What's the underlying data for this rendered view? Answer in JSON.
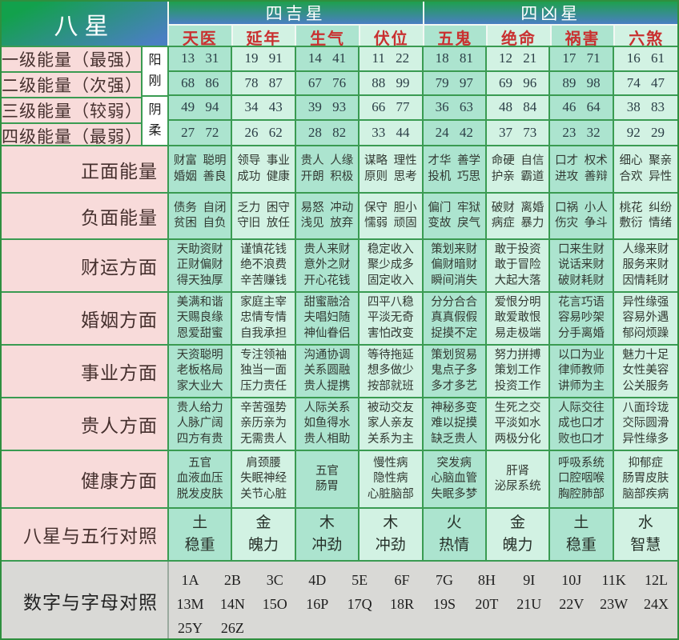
{
  "title": "八星",
  "groups": [
    {
      "label": "四吉星"
    },
    {
      "label": "四凶星"
    }
  ],
  "stars": [
    "天医",
    "延年",
    "生气",
    "伏位",
    "五鬼",
    "绝命",
    "祸害",
    "六煞"
  ],
  "yin_yang": [
    "阳刚",
    "阴柔"
  ],
  "energy_rows": [
    {
      "label": "一级能量（最强）",
      "values": [
        "13 31",
        "19 91",
        "14 41",
        "11 22",
        "18 81",
        "12 21",
        "17 71",
        "16 61"
      ]
    },
    {
      "label": "二级能量（次强）",
      "values": [
        "68 86",
        "78 87",
        "67 76",
        "88 99",
        "79 97",
        "69 96",
        "89 98",
        "74 47"
      ]
    },
    {
      "label": "三级能量（较弱）",
      "values": [
        "49 94",
        "34 43",
        "39 93",
        "66 77",
        "36 63",
        "48 84",
        "46 64",
        "38 83"
      ]
    },
    {
      "label": "四级能量（最弱）",
      "values": [
        "27 72",
        "26 62",
        "28 82",
        "33 44",
        "24 42",
        "37 73",
        "23 32",
        "92 29"
      ]
    }
  ],
  "aspect_rows": [
    {
      "label": "正面能量",
      "cells": [
        [
          "财富 聪明",
          "婚姻 善良"
        ],
        [
          "领导 事业",
          "成功 健康"
        ],
        [
          "贵人 人缘",
          "开朗 积极"
        ],
        [
          "谋略 理性",
          "原则 思考"
        ],
        [
          "才华 善学",
          "投机 巧思"
        ],
        [
          "命硬 自信",
          "护亲 霸道"
        ],
        [
          "口才 权术",
          "进攻 善辩"
        ],
        [
          "细心 聚亲",
          "合欢 异性"
        ]
      ]
    },
    {
      "label": "负面能量",
      "cells": [
        [
          "债务 自闭",
          "贫困 自负"
        ],
        [
          "乏力 困守",
          "守旧 放任"
        ],
        [
          "易怒 冲动",
          "浅见 放弃"
        ],
        [
          "保守 胆小",
          "懦弱 顽固"
        ],
        [
          "偏门 牢狱",
          "变故 戾气"
        ],
        [
          "破财 离婚",
          "病症 暴力"
        ],
        [
          "口祸 小人",
          "伤灾 争斗"
        ],
        [
          "桃花 纠纷",
          "敷衍 情绪"
        ]
      ]
    },
    {
      "label": "财运方面",
      "cells": [
        [
          "天助资财",
          "正财偏财",
          "得天独厚"
        ],
        [
          "谨慎花钱",
          "绝不浪费",
          "辛苦赚钱"
        ],
        [
          "贵人来财",
          "意外之财",
          "开心花钱"
        ],
        [
          "稳定收入",
          "聚少成多",
          "固定收入"
        ],
        [
          "策划来财",
          "偏财暗财",
          "瞬间消失"
        ],
        [
          "敢于投资",
          "敢于冒险",
          "大起大落"
        ],
        [
          "口来生财",
          "说话来财",
          "破财耗财"
        ],
        [
          "人缘来财",
          "服务来财",
          "因情耗财"
        ]
      ]
    },
    {
      "label": "婚姻方面",
      "cells": [
        [
          "美满和谐",
          "天赐良缘",
          "恩爱甜蜜"
        ],
        [
          "家庭主宰",
          "忠情专情",
          "自我承担"
        ],
        [
          "甜蜜融洽",
          "夫唱妇随",
          "神仙眷侣"
        ],
        [
          "四平八稳",
          "平淡无奇",
          "害怕改变"
        ],
        [
          "分分合合",
          "真真假假",
          "捉摸不定"
        ],
        [
          "爱恨分明",
          "敢爱敢恨",
          "易走极端"
        ],
        [
          "花言巧语",
          "容易吵架",
          "分手离婚"
        ],
        [
          "异性缘强",
          "容易外遇",
          "郁闷烦躁"
        ]
      ]
    },
    {
      "label": "事业方面",
      "cells": [
        [
          "天资聪明",
          "老板格局",
          "家大业大"
        ],
        [
          "专注领袖",
          "独当一面",
          "压力责任"
        ],
        [
          "沟通协调",
          "关系圆融",
          "贵人提携"
        ],
        [
          "等待拖延",
          "想多做少",
          "按部就班"
        ],
        [
          "策划贸易",
          "鬼点子多",
          "多才多艺"
        ],
        [
          "努力拼搏",
          "策划工作",
          "投资工作"
        ],
        [
          "以口为业",
          "律师教师",
          "讲师为主"
        ],
        [
          "魅力十足",
          "女性美容",
          "公关服务"
        ]
      ]
    },
    {
      "label": "贵人方面",
      "cells": [
        [
          "贵人给力",
          "人脉广阔",
          "四方有贵"
        ],
        [
          "辛苦强势",
          "亲历亲为",
          "无需贵人"
        ],
        [
          "人际关系",
          "如鱼得水",
          "贵人相助"
        ],
        [
          "被动交友",
          "家人亲友",
          "关系为主"
        ],
        [
          "神秘多变",
          "难以捉摸",
          "缺乏贵人"
        ],
        [
          "生死之交",
          "平淡如水",
          "两极分化"
        ],
        [
          "人际交往",
          "成也口才",
          "败也口才"
        ],
        [
          "八面玲珑",
          "交际圆滑",
          "异性缘多"
        ]
      ]
    },
    {
      "label": "健康方面",
      "cells": [
        [
          "五官",
          "血液血压",
          "脱发皮肤"
        ],
        [
          "肩颈腰",
          "失眠神经",
          "关节心脏"
        ],
        [
          "五官",
          "肠胃"
        ],
        [
          "慢性病",
          "隐性病",
          "心脏脑部"
        ],
        [
          "突发病",
          "心脑血管",
          "失眠多梦"
        ],
        [
          "肝肾",
          "泌尿系统"
        ],
        [
          "呼吸系统",
          "口腔咽喉",
          "胸腔肺部"
        ],
        [
          "抑郁症",
          "肠胃皮肤",
          "脑部疾病"
        ]
      ]
    },
    {
      "label": "八星与五行对照",
      "wuxing": true,
      "cells": [
        [
          "土",
          "稳重"
        ],
        [
          "金",
          "魄力"
        ],
        [
          "木",
          "冲劲"
        ],
        [
          "木",
          "冲劲"
        ],
        [
          "火",
          "热情"
        ],
        [
          "金",
          "魄力"
        ],
        [
          "土",
          "稳重"
        ],
        [
          "水",
          "智慧"
        ]
      ]
    }
  ],
  "letters_row": {
    "label": "数字与字母对照",
    "rows": [
      [
        "1A",
        "2B",
        "3C",
        "4D",
        "5E",
        "6F",
        "7G",
        "8H",
        "9I",
        "10J",
        "11K",
        "12L"
      ],
      [
        "13M",
        "14N",
        "15O",
        "16P",
        "17Q",
        "18R",
        "19S",
        "20T",
        "21U",
        "22V",
        "23W",
        "24X"
      ],
      [
        "25Y",
        "26Z"
      ]
    ]
  },
  "colors": {
    "border_green": "#3a9b52",
    "header_gradient_top": "#1ea04e",
    "header_gradient_bottom": "#4a7fc2",
    "column_mint_dark": "#ace4cf",
    "column_mint_light": "#d2f2e3",
    "label_pink": "#f8dbda",
    "letters_gray": "#d9d9d6",
    "star_red": "#c93030"
  }
}
